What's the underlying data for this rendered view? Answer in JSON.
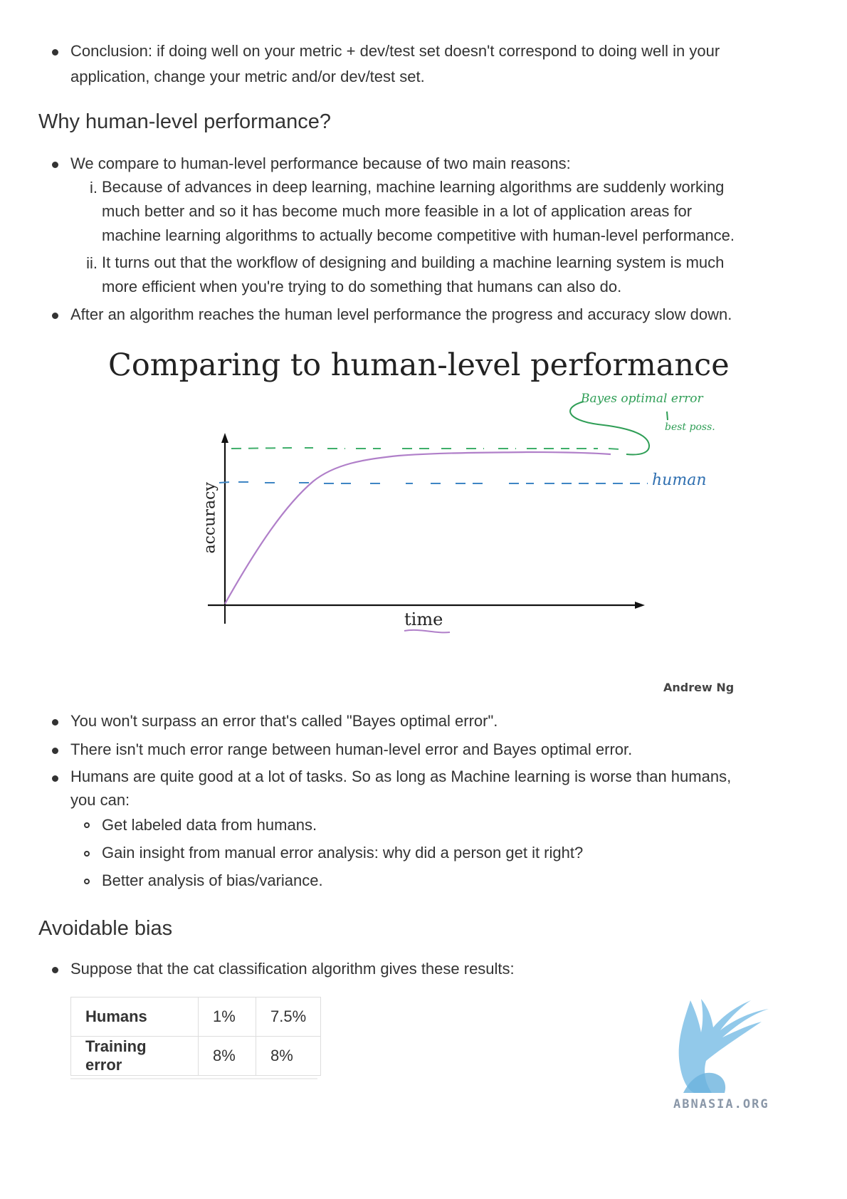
{
  "conclusion": {
    "line1": "Conclusion: if doing well on your metric + dev/test set doesn't correspond to doing well in your",
    "line2": "application, change your metric and/or dev/test set."
  },
  "section_human": {
    "heading": "Why human-level performance?",
    "intro": "We compare to human-level performance because of two main reasons:",
    "reasons": [
      {
        "marker": "i.",
        "lines": [
          "Because of advances in deep learning, machine learning algorithms are suddenly working",
          "much better and so it has become much more feasible in a lot of application areas for",
          "machine learning algorithms to actually become competitive with human-level performance."
        ]
      },
      {
        "marker": "ii.",
        "lines": [
          "It turns out that the workflow of designing and building a machine learning system is much",
          "more efficient when you're trying to do something that humans can also do."
        ]
      }
    ],
    "after": "After an algorithm reaches the human level performance the progress and accuracy slow down."
  },
  "figure": {
    "title": "Comparing to human-level performance",
    "xlabel": "time",
    "ylabel": "accuracy",
    "annotation_bayes": "Bayes optimal error",
    "annotation_best": "best poss.",
    "annotation_human": "human",
    "credit": "Andrew Ng",
    "colors": {
      "curve": "#b07fc9",
      "bayes_line": "#3fae6a",
      "human_line": "#3f86c4",
      "annotation_green": "#2f9e56",
      "annotation_blue": "#2f6fb0"
    }
  },
  "bullets_after_figure": [
    "You won't surpass an error that's called \"Bayes optimal error\".",
    "There isn't much error range between human-level error and Bayes optimal error."
  ],
  "humans_good": {
    "line1": "Humans are quite good at a lot of tasks. So as long as Machine learning is worse than humans,",
    "line2": "you can:",
    "subitems": [
      "Get labeled data from humans.",
      "Gain insight from manual error analysis: why did a person get it right?",
      "Better analysis of bias/variance."
    ]
  },
  "section_bias": {
    "heading": "Avoidable bias",
    "intro": "Suppose that the cat classification algorithm gives these results:",
    "table": [
      [
        "Humans",
        "1%",
        "7.5%"
      ],
      [
        "Training error",
        "8%",
        "8%"
      ]
    ]
  },
  "watermark": {
    "text": "ABNASIA.ORG",
    "color": "#7fc0e6"
  }
}
